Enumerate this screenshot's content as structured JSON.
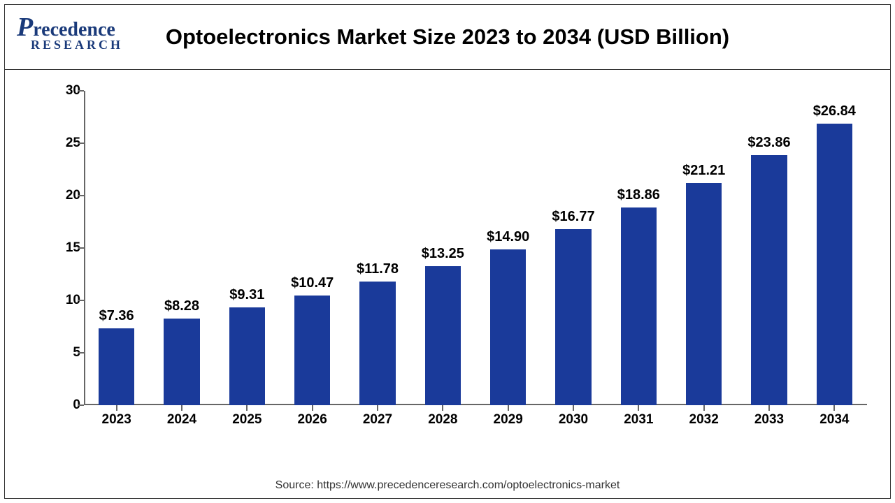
{
  "header": {
    "logo_main": "recedence",
    "logo_letter": "P",
    "logo_sub": "RESEARCH",
    "title": "Optoelectronics Market Size 2023 to 2034 (USD Billion)"
  },
  "chart": {
    "type": "bar",
    "categories": [
      "2023",
      "2024",
      "2025",
      "2026",
      "2027",
      "2028",
      "2029",
      "2030",
      "2031",
      "2032",
      "2033",
      "2034"
    ],
    "values": [
      7.36,
      8.28,
      9.31,
      10.47,
      11.78,
      13.25,
      14.9,
      16.77,
      18.86,
      21.21,
      23.86,
      26.84
    ],
    "value_labels": [
      "$7.36",
      "$8.28",
      "$9.31",
      "$10.47",
      "$11.78",
      "$13.25",
      "$14.90",
      "$16.77",
      "$18.86",
      "$21.21",
      "$23.86",
      "$26.84"
    ],
    "bar_color": "#1a3a9a",
    "ylim": [
      0,
      30
    ],
    "yticks": [
      0,
      5,
      10,
      15,
      20,
      25,
      30
    ],
    "background_color": "#ffffff",
    "axis_color": "#666666",
    "bar_width_ratio": 0.55,
    "title_fontsize": 31,
    "label_fontsize": 20,
    "tick_fontsize": 19
  },
  "footer": {
    "source": "Source: https://www.precedenceresearch.com/optoelectronics-market"
  }
}
